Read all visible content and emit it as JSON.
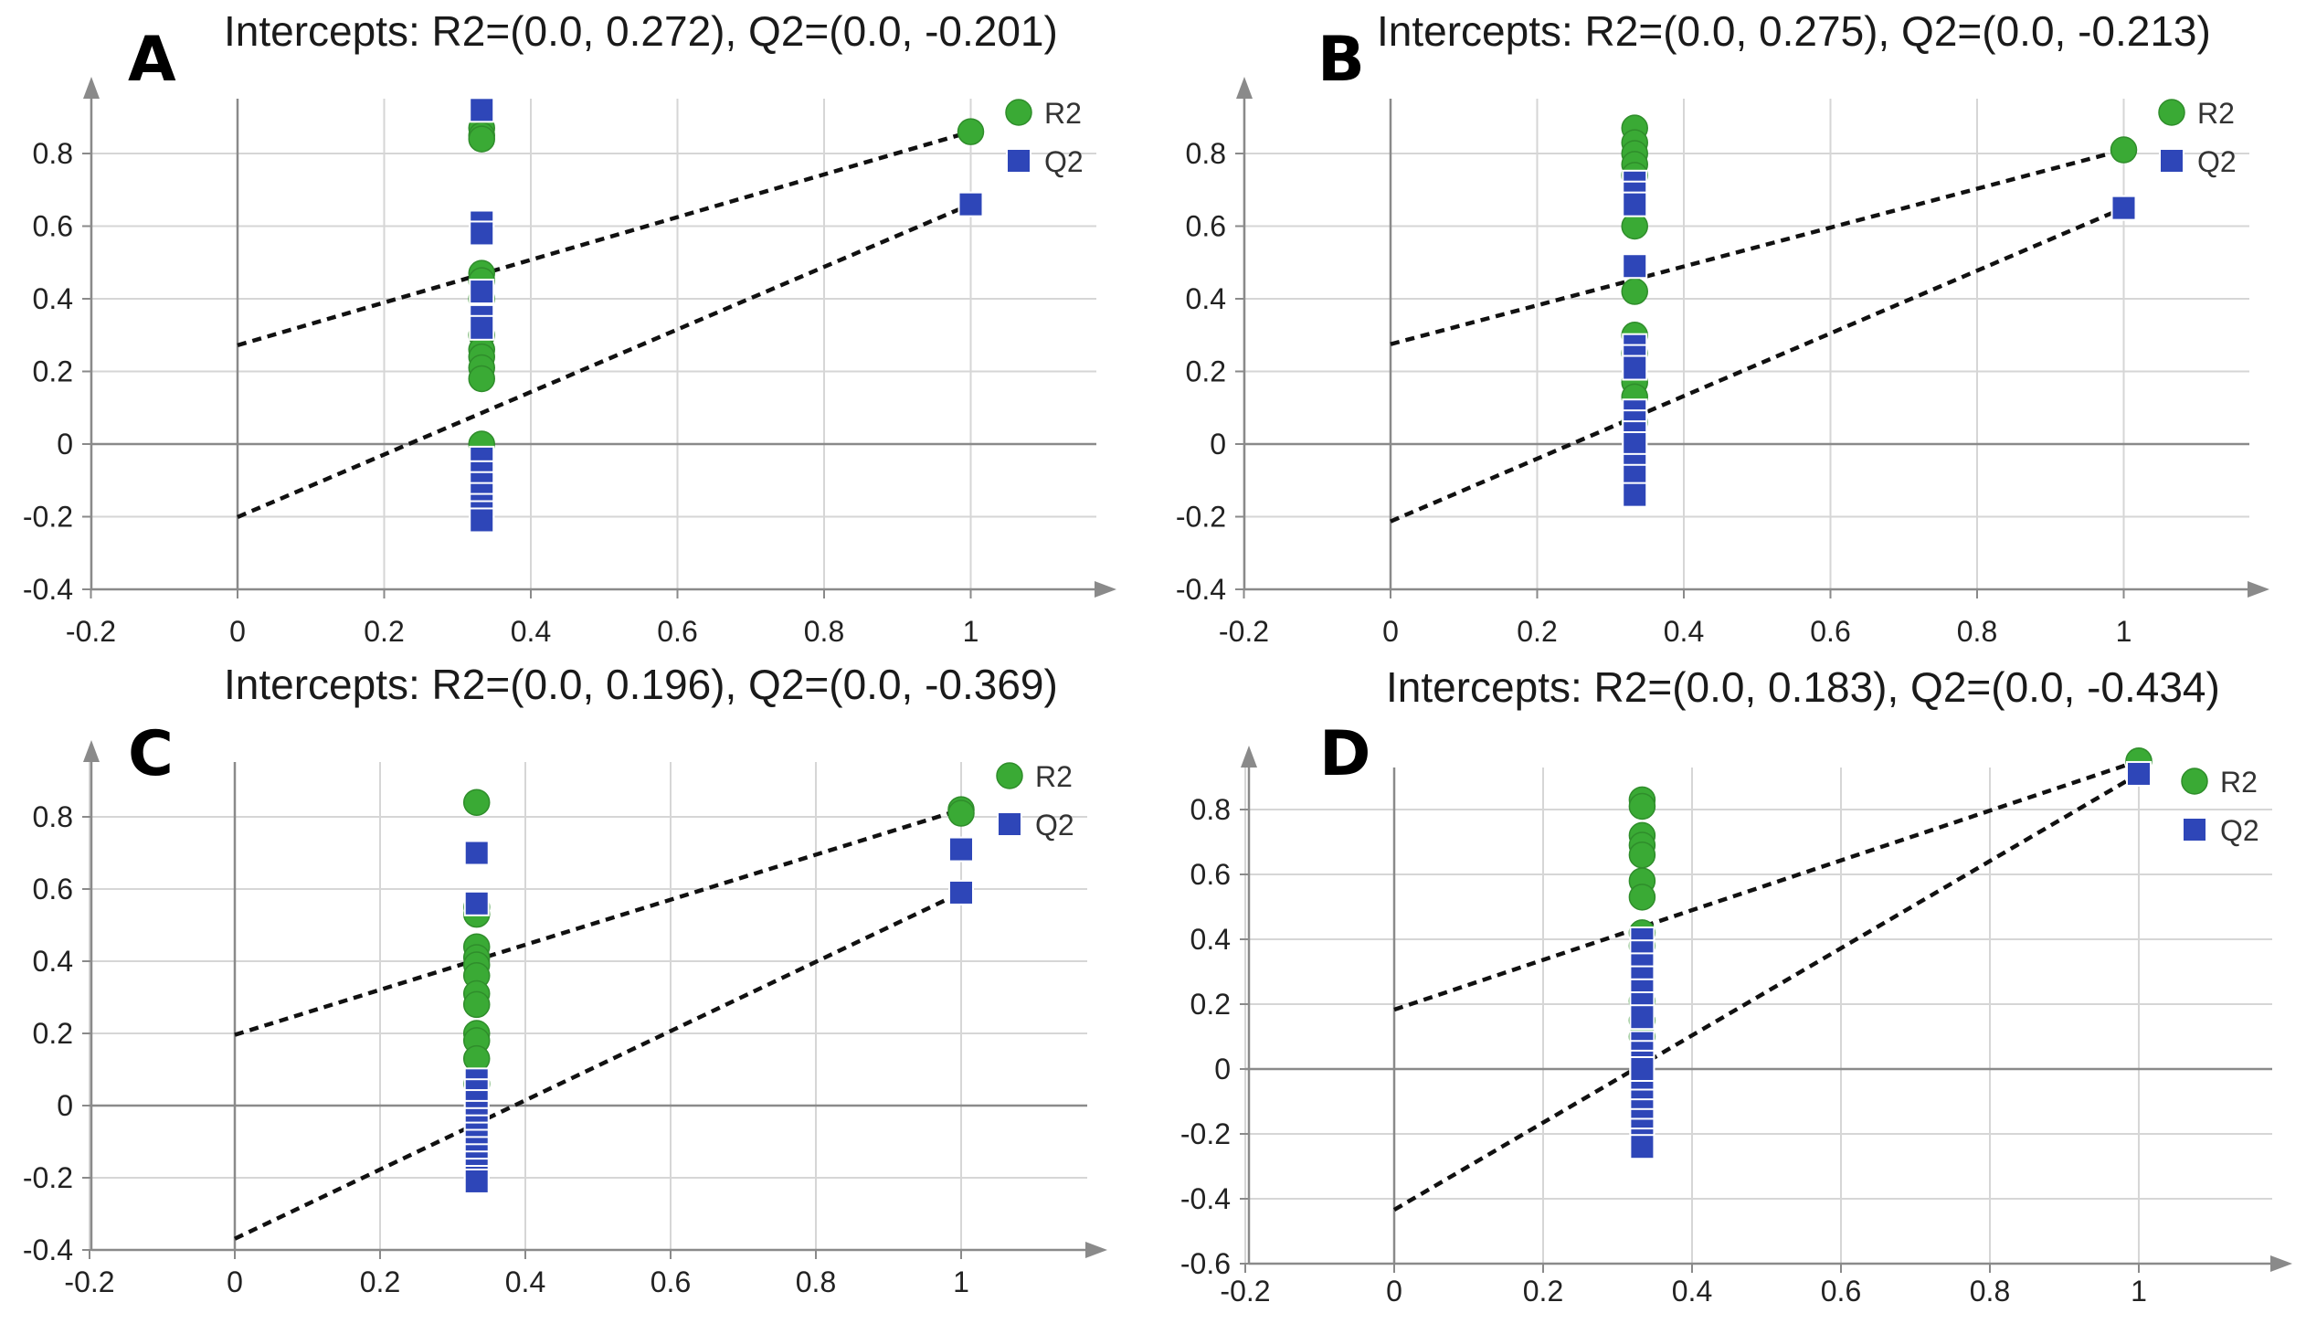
{
  "chart_data": [
    {
      "panel": "A",
      "type": "scatter",
      "title": "Intercepts: R2=(0.0, 0.272), Q2=(0.0, -0.201)",
      "xlabel": "",
      "ylabel": "",
      "xlim": [
        -0.2,
        1.2
      ],
      "ylim": [
        -0.4,
        0.98
      ],
      "xticks": [
        -0.2,
        0,
        0.2,
        0.4,
        0.6,
        0.8,
        1
      ],
      "xtick_labels": [
        "-0.2",
        "0",
        "0.2",
        "0.4",
        "0.6",
        "0.8",
        "1"
      ],
      "yticks": [
        -0.4,
        -0.2,
        0,
        0.2,
        0.4,
        0.6,
        0.8
      ],
      "ytick_labels": [
        "-0.4",
        "-0.2",
        "0",
        "0.2",
        "0.4",
        "0.6",
        "0.8"
      ],
      "legend": {
        "position": "top-right",
        "entries": [
          "R2",
          "Q2"
        ]
      },
      "series": [
        {
          "name": "R2",
          "marker": "circle",
          "color": "#3aaa35",
          "x": [
            0.333,
            0.333,
            0.333,
            0.333,
            0.333,
            0.333,
            0.333,
            0.333,
            0.333,
            0.333,
            0.333,
            0.333,
            1.0
          ],
          "y": [
            0.87,
            0.85,
            0.84,
            0.47,
            0.45,
            0.4,
            0.3,
            0.26,
            0.24,
            0.21,
            0.18,
            0.0,
            0.86
          ]
        },
        {
          "name": "Q2",
          "marker": "square",
          "color": "#2e46b8",
          "x": [
            0.333,
            0.333,
            0.333,
            0.333,
            0.333,
            0.333,
            0.333,
            0.333,
            0.333,
            0.333,
            0.333,
            0.333,
            0.333,
            1.0
          ],
          "y": [
            0.92,
            0.61,
            0.58,
            0.42,
            0.35,
            0.32,
            -0.04,
            -0.08,
            -0.11,
            -0.14,
            -0.17,
            -0.19,
            -0.21,
            0.66
          ]
        }
      ],
      "regression": {
        "R2": [
          0.272,
          0.86
        ],
        "Q2": [
          -0.201,
          0.66
        ]
      }
    },
    {
      "panel": "B",
      "type": "scatter",
      "title": "Intercepts: R2=(0.0, 0.275), Q2=(0.0, -0.213)",
      "xlabel": "",
      "ylabel": "",
      "xlim": [
        -0.2,
        1.2
      ],
      "ylim": [
        -0.4,
        0.98
      ],
      "xticks": [
        -0.2,
        0,
        0.2,
        0.4,
        0.6,
        0.8,
        1
      ],
      "xtick_labels": [
        "-0.2",
        "0",
        "0.2",
        "0.4",
        "0.6",
        "0.8",
        "1"
      ],
      "yticks": [
        -0.4,
        -0.2,
        0,
        0.2,
        0.4,
        0.6,
        0.8
      ],
      "ytick_labels": [
        "-0.4",
        "-0.2",
        "0",
        "0.2",
        "0.4",
        "0.6",
        "0.8"
      ],
      "legend": {
        "position": "top-right",
        "entries": [
          "R2",
          "Q2"
        ]
      },
      "series": [
        {
          "name": "R2",
          "marker": "circle",
          "color": "#3aaa35",
          "x": [
            0.333,
            0.333,
            0.333,
            0.333,
            0.333,
            0.333,
            0.333,
            0.333,
            0.333,
            0.333,
            0.333,
            0.333,
            1.0
          ],
          "y": [
            0.87,
            0.83,
            0.8,
            0.77,
            0.74,
            0.6,
            0.42,
            0.3,
            0.25,
            0.17,
            0.13,
            0.06,
            0.81
          ]
        },
        {
          "name": "Q2",
          "marker": "square",
          "color": "#2e46b8",
          "x": [
            0.333,
            0.333,
            0.333,
            0.333,
            0.333,
            0.333,
            0.333,
            0.333,
            0.333,
            0.333,
            0.333,
            0.333,
            0.333,
            0.333,
            1.0
          ],
          "y": [
            0.72,
            0.69,
            0.66,
            0.49,
            0.27,
            0.24,
            0.21,
            0.09,
            0.06,
            0.03,
            0.0,
            -0.06,
            -0.09,
            -0.14,
            0.65
          ]
        }
      ],
      "regression": {
        "R2": [
          0.275,
          0.81
        ],
        "Q2": [
          -0.213,
          0.65
        ]
      }
    },
    {
      "panel": "C",
      "type": "scatter",
      "title": "Intercepts: R2=(0.0, 0.196), Q2=(0.0, -0.369)",
      "xlabel": "",
      "ylabel": "",
      "xlim": [
        -0.2,
        1.2
      ],
      "ylim": [
        -0.4,
        0.98
      ],
      "xticks": [
        -0.2,
        0,
        0.2,
        0.4,
        0.6,
        0.8,
        1
      ],
      "xtick_labels": [
        "-0.2",
        "0",
        "0.2",
        "0.4",
        "0.6",
        "0.8",
        "1"
      ],
      "yticks": [
        -0.4,
        -0.2,
        0,
        0.2,
        0.4,
        0.6,
        0.8
      ],
      "ytick_labels": [
        "-0.4",
        "-0.2",
        "0",
        "0.2",
        "0.4",
        "0.6",
        "0.8"
      ],
      "legend": {
        "position": "top-right",
        "entries": [
          "R2",
          "Q2"
        ]
      },
      "series": [
        {
          "name": "R2",
          "marker": "circle",
          "color": "#3aaa35",
          "x": [
            0.333,
            0.333,
            0.333,
            0.333,
            0.333,
            0.333,
            0.333,
            0.333,
            0.333,
            0.333,
            0.333,
            0.333,
            0.333,
            1.0,
            1.0
          ],
          "y": [
            0.84,
            0.55,
            0.53,
            0.44,
            0.41,
            0.39,
            0.36,
            0.31,
            0.28,
            0.2,
            0.18,
            0.13,
            0.06,
            0.82,
            0.81
          ]
        },
        {
          "name": "Q2",
          "marker": "square",
          "color": "#2e46b8",
          "x": [
            0.333,
            0.333,
            0.333,
            0.333,
            0.333,
            0.333,
            0.333,
            0.333,
            0.333,
            0.333,
            0.333,
            0.333,
            0.333,
            0.333,
            0.333,
            0.333,
            1.0,
            1.0
          ],
          "y": [
            0.7,
            0.56,
            0.07,
            0.04,
            0.01,
            -0.02,
            -0.04,
            -0.06,
            -0.08,
            -0.1,
            -0.12,
            -0.14,
            -0.16,
            -0.18,
            -0.2,
            -0.21,
            0.71,
            0.59
          ]
        }
      ],
      "regression": {
        "R2": [
          0.196,
          0.82
        ],
        "Q2": [
          -0.369,
          0.59
        ]
      }
    },
    {
      "panel": "D",
      "type": "scatter",
      "title": "Intercepts: R2=(0.0, 0.183), Q2=(0.0, -0.434)",
      "xlabel": "",
      "ylabel": "",
      "xlim": [
        -0.2,
        1.2
      ],
      "ylim": [
        -0.6,
        0.98
      ],
      "xticks": [
        -0.2,
        0,
        0.2,
        0.4,
        0.6,
        0.8,
        1
      ],
      "xtick_labels": [
        "-0.2",
        "0",
        "0.2",
        "0.4",
        "0.6",
        "0.8",
        "1"
      ],
      "yticks": [
        -0.6,
        -0.4,
        -0.2,
        0,
        0.2,
        0.4,
        0.6,
        0.8
      ],
      "ytick_labels": [
        "-0.6",
        "-0.4",
        "-0.2",
        "0",
        "0.2",
        "0.4",
        "0.6",
        "0.8"
      ],
      "legend": {
        "position": "top-right",
        "entries": [
          "R2",
          "Q2"
        ]
      },
      "series": [
        {
          "name": "R2",
          "marker": "circle",
          "color": "#3aaa35",
          "x": [
            0.333,
            0.333,
            0.333,
            0.333,
            0.333,
            0.333,
            0.333,
            0.333,
            0.333,
            0.333,
            0.333,
            0.333,
            1.0
          ],
          "y": [
            0.83,
            0.81,
            0.72,
            0.69,
            0.66,
            0.58,
            0.53,
            0.42,
            0.38,
            0.21,
            0.15,
            0.1,
            0.95
          ]
        },
        {
          "name": "Q2",
          "marker": "square",
          "color": "#2e46b8",
          "x": [
            0.333,
            0.333,
            0.333,
            0.333,
            0.333,
            0.333,
            0.333,
            0.333,
            0.333,
            0.333,
            0.333,
            0.333,
            0.333,
            0.333,
            0.333,
            0.333,
            0.333,
            0.333,
            0.333,
            0.333,
            1.0
          ],
          "y": [
            0.4,
            0.36,
            0.32,
            0.28,
            0.24,
            0.2,
            0.16,
            0.08,
            0.05,
            0.02,
            -0.01,
            -0.04,
            -0.07,
            -0.1,
            -0.13,
            -0.16,
            -0.19,
            -0.22,
            -0.24,
            0.0,
            0.91
          ]
        }
      ],
      "regression": {
        "R2": [
          0.183,
          0.95
        ],
        "Q2": [
          -0.434,
          0.91
        ]
      }
    }
  ]
}
